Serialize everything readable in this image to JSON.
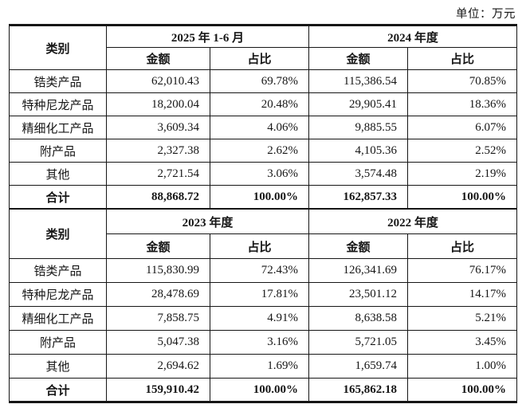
{
  "unit_label": "单位：万元",
  "colors": {
    "text": "#161616",
    "border": "#161616",
    "background": "#ffffff"
  },
  "tables": [
    {
      "category_header": "类别",
      "period_headers": [
        "2025 年 1-6 月",
        "2024 年度"
      ],
      "sub_headers": [
        "金额",
        "占比",
        "金额",
        "占比"
      ],
      "rows": [
        [
          "锆类产品",
          "62,010.43",
          "69.78%",
          "115,386.54",
          "70.85%"
        ],
        [
          "特种尼龙产品",
          "18,200.04",
          "20.48%",
          "29,905.41",
          "18.36%"
        ],
        [
          "精细化工产品",
          "3,609.34",
          "4.06%",
          "9,885.55",
          "6.07%"
        ],
        [
          "附产品",
          "2,327.38",
          "2.62%",
          "4,105.36",
          "2.52%"
        ],
        [
          "其他",
          "2,721.54",
          "3.06%",
          "3,574.48",
          "2.19%"
        ]
      ],
      "total_row": [
        "合计",
        "88,868.72",
        "100.00%",
        "162,857.33",
        "100.00%"
      ]
    },
    {
      "category_header": "类别",
      "period_headers": [
        "2023 年度",
        "2022 年度"
      ],
      "sub_headers": [
        "金额",
        "占比",
        "金额",
        "占比"
      ],
      "rows": [
        [
          "锆类产品",
          "115,830.99",
          "72.43%",
          "126,341.69",
          "76.17%"
        ],
        [
          "特种尼龙产品",
          "28,478.69",
          "17.81%",
          "23,501.12",
          "14.17%"
        ],
        [
          "精细化工产品",
          "7,858.75",
          "4.91%",
          "8,638.58",
          "5.21%"
        ],
        [
          "附产品",
          "5,047.38",
          "3.16%",
          "5,721.05",
          "3.45%"
        ],
        [
          "其他",
          "2,694.62",
          "1.69%",
          "1,659.74",
          "1.00%"
        ]
      ],
      "total_row": [
        "合计",
        "159,910.42",
        "100.00%",
        "165,862.18",
        "100.00%"
      ]
    }
  ]
}
